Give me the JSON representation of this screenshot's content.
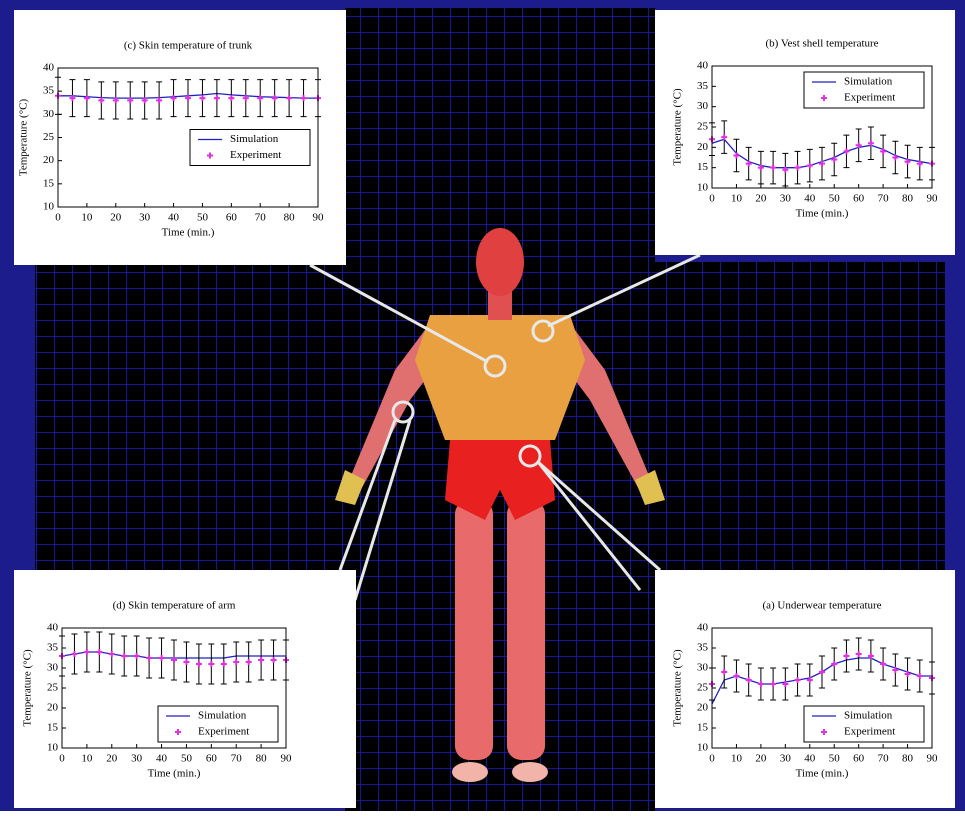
{
  "chart_data": [
    {
      "type": "line",
      "title": "(c) Skin temperature of trunk",
      "x_label": "Time (min.)",
      "y_label": "Temperature (°C)",
      "x": [
        0,
        5,
        10,
        15,
        20,
        25,
        30,
        35,
        40,
        45,
        50,
        55,
        60,
        65,
        70,
        75,
        80,
        85,
        90
      ],
      "series": [
        {
          "name": "Simulation",
          "color": "#2020c0",
          "values": [
            34,
            34,
            33.8,
            33.6,
            33.5,
            33.5,
            33.5,
            33.6,
            33.8,
            34,
            34.2,
            34.5,
            34.2,
            34,
            33.8,
            33.7,
            33.6,
            33.5,
            33.5
          ]
        },
        {
          "name": "Experiment",
          "color": "#e030e0",
          "values": [
            34,
            33.5,
            33.5,
            33,
            33,
            33,
            33,
            33,
            33.5,
            33.5,
            33.5,
            33.5,
            33.5,
            33.5,
            33.5,
            33.5,
            33.5,
            33.5,
            33.5
          ],
          "errors": [
            4,
            4,
            4,
            4,
            4,
            4,
            4,
            4,
            4,
            4,
            4,
            4,
            4,
            4,
            4,
            4,
            4,
            4,
            4
          ]
        }
      ],
      "xlim": [
        0,
        90
      ],
      "xticks": [
        0,
        10,
        20,
        30,
        40,
        50,
        60,
        70,
        80,
        90
      ],
      "ylim": [
        10,
        40
      ],
      "yticks": [
        10,
        15,
        20,
        25,
        30,
        35,
        40
      ],
      "legend": "center right"
    },
    {
      "type": "line",
      "title": "(b) Vest shell temperature",
      "x_label": "Time (min.)",
      "y_label": "Temperature (°C)",
      "x": [
        0,
        5,
        10,
        15,
        20,
        25,
        30,
        35,
        40,
        45,
        50,
        55,
        60,
        65,
        70,
        75,
        80,
        85,
        90
      ],
      "series": [
        {
          "name": "Simulation",
          "color": "#2020c0",
          "values": [
            21,
            22,
            18.5,
            16.5,
            15.5,
            15,
            15,
            15,
            15.5,
            16.5,
            17.5,
            19,
            20,
            20.5,
            19.5,
            18,
            17,
            16.5,
            16
          ]
        },
        {
          "name": "Experiment",
          "color": "#e030e0",
          "values": [
            22,
            22.5,
            18,
            16,
            15,
            15,
            14.5,
            15,
            15.5,
            16,
            17,
            19,
            20.5,
            21,
            19,
            17.5,
            16.5,
            16,
            16
          ],
          "errors": [
            4,
            4,
            4,
            4,
            4,
            4,
            4,
            4,
            4,
            4,
            4,
            4,
            4,
            4,
            4,
            4,
            4,
            4,
            4
          ]
        }
      ],
      "xlim": [
        0,
        90
      ],
      "xticks": [
        0,
        10,
        20,
        30,
        40,
        50,
        60,
        70,
        80,
        90
      ],
      "ylim": [
        10,
        40
      ],
      "yticks": [
        10,
        15,
        20,
        25,
        30,
        35,
        40
      ],
      "legend": "upper right"
    },
    {
      "type": "line",
      "title": "(d) Skin temperature of arm",
      "x_label": "Time (min.)",
      "y_label": "Temperature (°C)",
      "x": [
        0,
        5,
        10,
        15,
        20,
        25,
        30,
        35,
        40,
        45,
        50,
        55,
        60,
        65,
        70,
        75,
        80,
        85,
        90
      ],
      "series": [
        {
          "name": "Simulation",
          "color": "#2020c0",
          "values": [
            33,
            33.5,
            34,
            34,
            33.5,
            33,
            33,
            32.5,
            32.5,
            32.5,
            32.5,
            32.5,
            32.5,
            32.5,
            33,
            33,
            33,
            33,
            33
          ]
        },
        {
          "name": "Experiment",
          "color": "#e030e0",
          "values": [
            33,
            33.5,
            34,
            34,
            33.5,
            33,
            33,
            32.5,
            32.5,
            32,
            31.5,
            31,
            31,
            31,
            31.5,
            31.5,
            32,
            32,
            32
          ],
          "errors": [
            5,
            5,
            5,
            5,
            5,
            5,
            5,
            5,
            5,
            5,
            5,
            5,
            5,
            5,
            5,
            5,
            5,
            5,
            5
          ]
        }
      ],
      "xlim": [
        0,
        90
      ],
      "xticks": [
        0,
        10,
        20,
        30,
        40,
        50,
        60,
        70,
        80,
        90
      ],
      "ylim": [
        10,
        40
      ],
      "yticks": [
        10,
        15,
        20,
        25,
        30,
        35,
        40
      ],
      "legend": "lower right"
    },
    {
      "type": "line",
      "title": "(a) Underwear temperature",
      "x_label": "Time (min.)",
      "y_label": "Temperature (°C)",
      "x": [
        0,
        5,
        10,
        15,
        20,
        25,
        30,
        35,
        40,
        45,
        50,
        55,
        60,
        65,
        70,
        75,
        80,
        85,
        90
      ],
      "series": [
        {
          "name": "Simulation",
          "color": "#2020c0",
          "values": [
            21,
            27,
            28,
            27,
            26,
            26,
            26.5,
            27,
            27.5,
            29,
            31,
            32,
            32.5,
            32.5,
            31,
            30,
            29,
            28,
            28
          ]
        },
        {
          "name": "Experiment",
          "color": "#e030e0",
          "values": [
            26,
            29,
            28,
            27,
            26,
            26,
            26,
            27,
            27,
            29,
            31,
            33,
            33.5,
            33,
            31,
            29.5,
            28.5,
            28,
            27.5
          ],
          "errors": [
            4,
            4,
            4,
            4,
            4,
            4,
            4,
            4,
            4,
            4,
            4,
            4,
            4,
            4,
            4,
            4,
            4,
            4,
            4
          ]
        }
      ],
      "xlim": [
        0,
        90
      ],
      "xticks": [
        0,
        10,
        20,
        30,
        40,
        50,
        60,
        70,
        80,
        90
      ],
      "ylim": [
        10,
        40
      ],
      "yticks": [
        10,
        15,
        20,
        25,
        30,
        35,
        40
      ],
      "legend": "lower right"
    }
  ]
}
